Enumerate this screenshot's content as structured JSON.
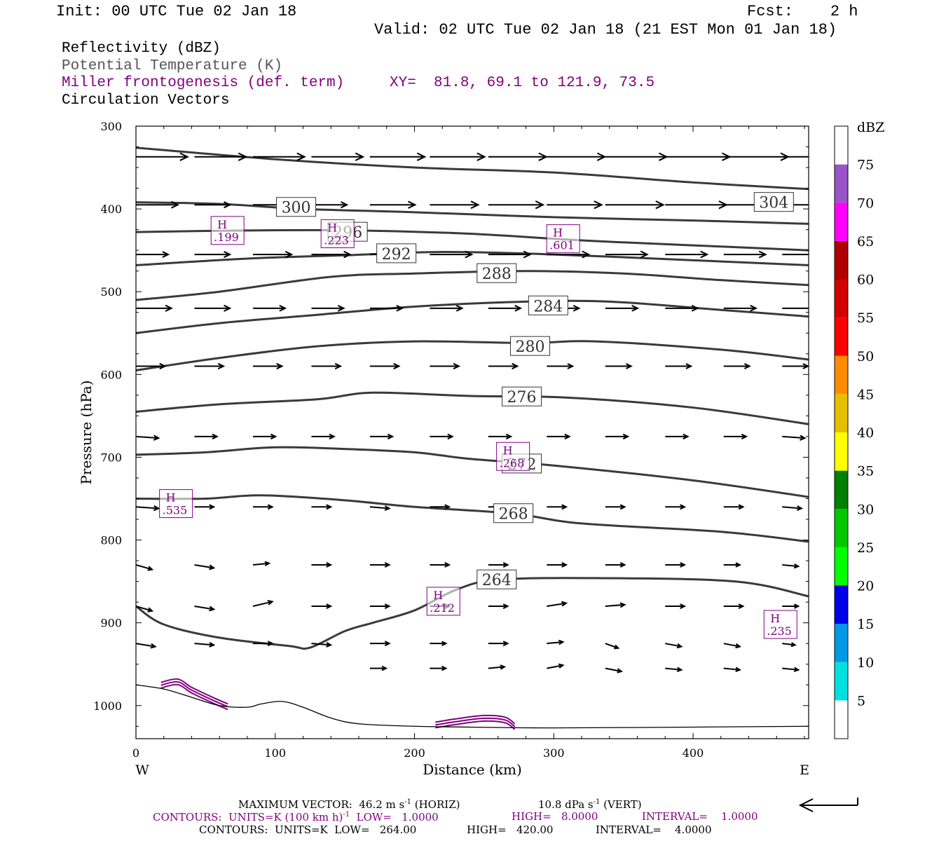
{
  "header": {
    "init": "Init: 00 UTC Tue 02 Jan 18",
    "fcst": "Fcst:    2 h",
    "valid": "Valid: 02 UTC Tue 02 Jan 18 (21 EST Mon 01 Jan 18)"
  },
  "legend": {
    "line1": "Reflectivity (dBZ)",
    "line2": "Potential Temperature (K)",
    "line3": "Miller frontogenesis (def. term)",
    "xy": "XY=  81.8, 69.1 to 121.9, 73.5",
    "line4": "Circulation Vectors"
  },
  "footer": {
    "maxvec_a": "MAXIMUM VECTOR:  46.2 m s",
    "maxvec_exp": "-1",
    "maxvec_b": " (HORIZ)",
    "maxvec_c": "10.8 dPa s",
    "maxvec_d": " (VERT)",
    "cont1_a": "CONTOURS:  UNITS=K (100 km h)",
    "cont1_b": "  LOW=   1.0000",
    "cont1_c": "HIGH=   8.0000",
    "cont1_d": "INTERVAL=    1.0000",
    "cont2_a": "CONTOURS:  UNITS=K  LOW=   264.00",
    "cont2_b": "HIGH=   420.00",
    "cont2_c": "INTERVAL=    4.0000"
  },
  "colors": {
    "theta": "#3a3a3a",
    "frontogenesis": "#800080",
    "vector": "#000000"
  },
  "chart_data": {
    "type": "cross-section",
    "xlabel": "Distance (km)",
    "ylabel": "Pressure (hPa)",
    "xlim": [
      0,
      483
    ],
    "ylim": [
      1040,
      300
    ],
    "xticks": [
      0,
      100,
      200,
      300,
      400
    ],
    "yticks": [
      300,
      400,
      500,
      600,
      700,
      800,
      900,
      1000
    ],
    "x_end_labels": {
      "left": "W",
      "right": "E"
    },
    "colorbar": {
      "unit": "dBZ",
      "ticks": [
        "5",
        "10",
        "15",
        "20",
        "25",
        "30",
        "35",
        "40",
        "45",
        "50",
        "55",
        "60",
        "65",
        "70",
        "75"
      ],
      "colors": [
        "#ffffff",
        "#00e0e0",
        "#0099e6",
        "#0000e6",
        "#00ff00",
        "#00c800",
        "#008000",
        "#ffff00",
        "#e6c000",
        "#ff8c00",
        "#ff0000",
        "#d40000",
        "#b00000",
        "#ff00ff",
        "#9955c8",
        "#ffffff"
      ]
    },
    "theta_contours": [
      {
        "value": 304,
        "label": "304",
        "label_at": [
          458,
          392
        ],
        "points": [
          [
            0,
            326
          ],
          [
            100,
            340
          ],
          [
            200,
            350
          ],
          [
            300,
            356
          ],
          [
            400,
            368
          ],
          [
            483,
            376
          ]
        ]
      },
      {
        "value": 300,
        "label": "300",
        "label_at": [
          115,
          398
        ],
        "points": [
          [
            0,
            392
          ],
          [
            60,
            394
          ],
          [
            120,
            400
          ],
          [
            200,
            404
          ],
          [
            300,
            410
          ],
          [
            400,
            414
          ],
          [
            483,
            418
          ]
        ]
      },
      {
        "value": 296,
        "label": "296",
        "label_at": [
          152,
          428
        ],
        "points": [
          [
            0,
            428
          ],
          [
            80,
            426
          ],
          [
            160,
            426
          ],
          [
            240,
            430
          ],
          [
            320,
            438
          ],
          [
            400,
            444
          ],
          [
            483,
            450
          ]
        ]
      },
      {
        "value": 292,
        "label": "292",
        "label_at": [
          187,
          454
        ],
        "points": [
          [
            0,
            468
          ],
          [
            80,
            460
          ],
          [
            150,
            456
          ],
          [
            220,
            452
          ],
          [
            300,
            455
          ],
          [
            400,
            462
          ],
          [
            483,
            468
          ]
        ]
      },
      {
        "value": 288,
        "label": "288",
        "label_at": [
          259,
          478
        ],
        "points": [
          [
            0,
            510
          ],
          [
            60,
            500
          ],
          [
            140,
            482
          ],
          [
            200,
            478
          ],
          [
            280,
            475
          ],
          [
            350,
            478
          ],
          [
            420,
            486
          ],
          [
            483,
            492
          ]
        ]
      },
      {
        "value": 284,
        "label": "284",
        "label_at": [
          296,
          517
        ],
        "points": [
          [
            0,
            550
          ],
          [
            60,
            538
          ],
          [
            130,
            528
          ],
          [
            200,
            518
          ],
          [
            280,
            512
          ],
          [
            340,
            512
          ],
          [
            420,
            522
          ],
          [
            483,
            530
          ]
        ]
      },
      {
        "value": 280,
        "label": "280",
        "label_at": [
          283,
          566
        ],
        "points": [
          [
            0,
            595
          ],
          [
            60,
            580
          ],
          [
            130,
            566
          ],
          [
            200,
            560
          ],
          [
            280,
            562
          ],
          [
            330,
            560
          ],
          [
            420,
            570
          ],
          [
            483,
            582
          ]
        ]
      },
      {
        "value": 276,
        "label": "276",
        "label_at": [
          277,
          627
        ],
        "points": [
          [
            0,
            645
          ],
          [
            60,
            636
          ],
          [
            130,
            630
          ],
          [
            170,
            622
          ],
          [
            240,
            626
          ],
          [
            310,
            628
          ],
          [
            400,
            640
          ],
          [
            483,
            660
          ]
        ]
      },
      {
        "value": 272,
        "label": "272",
        "label_at": [
          277,
          708
        ],
        "points": [
          [
            0,
            697
          ],
          [
            50,
            694
          ],
          [
            100,
            688
          ],
          [
            150,
            690
          ],
          [
            200,
            694
          ],
          [
            240,
            702
          ],
          [
            300,
            710
          ],
          [
            400,
            728
          ],
          [
            483,
            748
          ]
        ]
      },
      {
        "value": 268,
        "label": "268",
        "label_at": [
          271,
          768
        ],
        "points": [
          [
            0,
            750
          ],
          [
            50,
            750
          ],
          [
            90,
            746
          ],
          [
            150,
            752
          ],
          [
            200,
            760
          ],
          [
            270,
            768
          ],
          [
            320,
            780
          ],
          [
            420,
            790
          ],
          [
            483,
            802
          ]
        ]
      },
      {
        "value": 264,
        "label": "264",
        "label_at": [
          259,
          848
        ],
        "points": [
          [
            0,
            880
          ],
          [
            20,
            902
          ],
          [
            60,
            918
          ],
          [
            110,
            928
          ],
          [
            125,
            930
          ],
          [
            150,
            910
          ],
          [
            170,
            900
          ],
          [
            200,
            885
          ],
          [
            230,
            860
          ],
          [
            260,
            848
          ],
          [
            330,
            846
          ],
          [
            430,
            850
          ],
          [
            483,
            868
          ]
        ]
      }
    ],
    "frontogenesis_maxima": [
      {
        "label": "H",
        "value": ".199",
        "x": 66,
        "p": 426
      },
      {
        "label": "H",
        "value": ".223",
        "x": 145,
        "p": 430
      },
      {
        "label": "H",
        "value": ".601",
        "x": 307,
        "p": 436
      },
      {
        "label": "H",
        "value": ".268",
        "x": 271,
        "p": 699
      },
      {
        "label": "H",
        "value": ".535",
        "x": 29,
        "p": 756
      },
      {
        "label": "H",
        "value": ".212",
        "x": 221,
        "p": 874
      },
      {
        "label": "H",
        "value": ".235",
        "x": 463,
        "p": 902
      }
    ],
    "vectors": {
      "x": [
        0,
        42,
        84,
        126,
        168,
        211,
        253,
        295,
        337,
        380,
        422,
        464
      ],
      "levels": [
        {
          "p": 337,
          "u": [
            32,
            32,
            32,
            32,
            34,
            34,
            36,
            36,
            38,
            40,
            40,
            40
          ],
          "w": [
            0,
            0,
            0,
            0,
            0,
            0,
            0,
            0,
            0,
            0,
            0,
            0
          ]
        },
        {
          "p": 395,
          "u": [
            26,
            22,
            22,
            22,
            28,
            30,
            34,
            34,
            36,
            38,
            36,
            36
          ],
          "w": [
            0,
            0,
            0,
            0,
            0,
            0,
            0,
            0,
            0,
            0,
            0,
            0
          ]
        },
        {
          "p": 455,
          "u": [
            20,
            22,
            24,
            24,
            26,
            26,
            26,
            26,
            26,
            26,
            26,
            26
          ],
          "w": [
            0,
            0,
            0,
            0,
            0,
            0,
            0,
            0,
            0,
            0,
            0,
            0
          ]
        },
        {
          "p": 520,
          "u": [
            22,
            22,
            20,
            20,
            20,
            20,
            20,
            20,
            20,
            20,
            20,
            20
          ],
          "w": [
            0,
            0,
            0,
            0,
            0,
            0,
            0,
            0,
            0,
            0,
            0,
            0
          ]
        },
        {
          "p": 590,
          "u": [
            18,
            18,
            18,
            18,
            18,
            18,
            18,
            16,
            16,
            16,
            16,
            16
          ],
          "w": [
            0,
            0,
            0,
            0,
            0,
            0,
            0,
            0,
            0,
            0,
            0,
            0
          ]
        },
        {
          "p": 675,
          "u": [
            14,
            14,
            14,
            14,
            14,
            14,
            14,
            14,
            14,
            14,
            14,
            14
          ],
          "w": [
            1,
            0,
            0,
            0,
            0,
            0,
            0,
            0,
            0,
            0,
            0,
            1
          ]
        },
        {
          "p": 760,
          "u": [
            14,
            12,
            12,
            12,
            12,
            12,
            12,
            12,
            12,
            12,
            12,
            12
          ],
          "w": [
            1,
            0,
            0,
            0,
            1,
            0,
            0,
            0,
            0,
            0,
            0,
            1
          ]
        },
        {
          "p": 830,
          "u": [
            10,
            12,
            10,
            12,
            12,
            12,
            12,
            12,
            12,
            12,
            10,
            10
          ],
          "w": [
            3,
            2,
            -1,
            0,
            0,
            0,
            0,
            0,
            0,
            0,
            0,
            1
          ]
        },
        {
          "p": 880,
          "u": [
            10,
            12,
            12,
            12,
            12,
            12,
            12,
            12,
            12,
            12,
            12,
            10
          ],
          "w": [
            3,
            2,
            -3,
            0,
            0,
            0,
            0,
            -2,
            -1,
            0,
            0,
            0
          ]
        },
        {
          "p": 925,
          "u": [
            12,
            12,
            12,
            12,
            12,
            10,
            12,
            10,
            8,
            10,
            10,
            8
          ],
          "w": [
            2,
            1,
            0,
            1,
            0,
            0,
            0,
            -1,
            3,
            2,
            2,
            1
          ]
        },
        {
          "p": 955,
          "u": [
            0,
            0,
            0,
            0,
            10,
            10,
            10,
            10,
            10,
            10,
            10,
            10
          ],
          "w": [
            0,
            0,
            0,
            0,
            0,
            0,
            -1,
            -2,
            2,
            1,
            1,
            1
          ]
        }
      ]
    },
    "terrain": [
      [
        0,
        975
      ],
      [
        20,
        980
      ],
      [
        40,
        990
      ],
      [
        60,
        1000
      ],
      [
        80,
        1002
      ],
      [
        90,
        998
      ],
      [
        105,
        995
      ],
      [
        120,
        1002
      ],
      [
        140,
        1015
      ],
      [
        160,
        1022
      ],
      [
        200,
        1025
      ],
      [
        240,
        1026
      ],
      [
        300,
        1027
      ],
      [
        400,
        1026
      ],
      [
        483,
        1025
      ]
    ],
    "reflectivity_patches": [
      {
        "points": [
          [
            18,
            972
          ],
          [
            30,
            968
          ],
          [
            40,
            978
          ],
          [
            55,
            990
          ],
          [
            66,
            998
          ]
        ]
      },
      {
        "points": [
          [
            215,
            1020
          ],
          [
            230,
            1016
          ],
          [
            250,
            1012
          ],
          [
            265,
            1014
          ],
          [
            272,
            1022
          ]
        ]
      }
    ]
  }
}
